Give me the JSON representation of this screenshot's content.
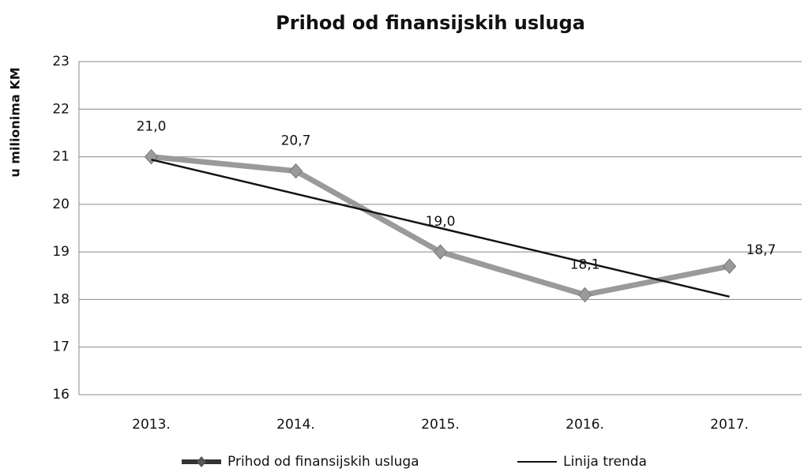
{
  "chart_data": {
    "type": "line",
    "title": "Prihod od finansijskih usluga",
    "y_label": "u milionima KM",
    "categories": [
      "2013.",
      "2014.",
      "2015.",
      "2016.",
      "2017."
    ],
    "series": [
      {
        "name": "Prihod od finansijskih usluga",
        "color": "#9a9a9a",
        "marker": "diamond",
        "values": [
          21.0,
          20.7,
          19.0,
          18.1,
          18.7
        ],
        "value_labels": [
          "21,0",
          "20,7",
          "19,0",
          "18,1",
          "18,7"
        ]
      },
      {
        "name": "Linija trenda",
        "color": "#111111",
        "values": [
          20.94,
          20.22,
          19.5,
          18.78,
          18.06
        ]
      }
    ],
    "ylim": [
      16,
      23
    ],
    "yticks": [
      16,
      17,
      18,
      19,
      20,
      21,
      22,
      23
    ],
    "grid": true,
    "legend": "bottom"
  }
}
